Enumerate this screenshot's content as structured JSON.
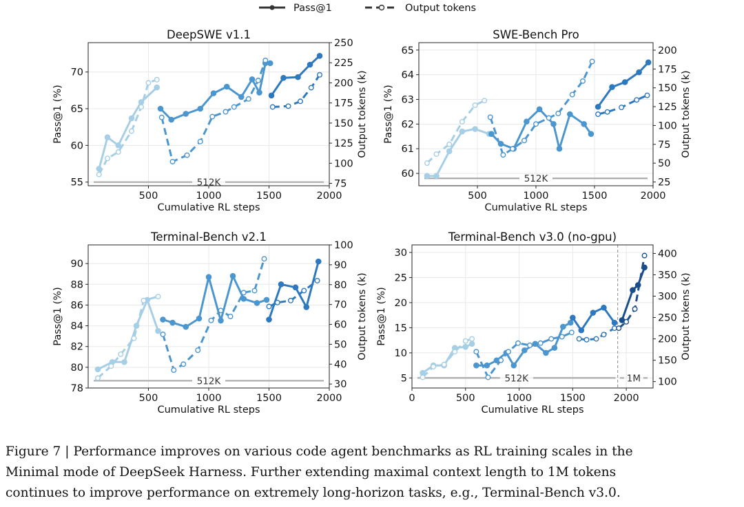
{
  "legend": {
    "pass_label": "Pass@1",
    "tokens_label": "Output tokens"
  },
  "caption": {
    "line1": "Figure 7 | Performance improves on various code agent benchmarks as RL training scales in the",
    "line2": "Minimal mode of DeepSeek Harness. Further extending maximal context length to 1M tokens",
    "line3": "continues to improve performance on extremely long-horizon tasks, e.g., Terminal-Bench v3.0."
  },
  "chart_data": [
    {
      "type": "line",
      "title": "DeepSWE v1.1",
      "xlabel": "Cumulative RL steps",
      "ylabel": "Pass@1 (%)",
      "y2label": "Output tokens (k)",
      "xlim": [
        0,
        2000
      ],
      "ylim": [
        54.5,
        74
      ],
      "y2lim": [
        72,
        250
      ],
      "xticks": [
        500,
        1000,
        1500,
        2000
      ],
      "yticks": [
        55,
        60,
        65,
        70
      ],
      "y2ticks": [
        75,
        100,
        125,
        150,
        175,
        200,
        225,
        250
      ],
      "grid": true,
      "context_bars": [
        {
          "label": "512K",
          "x": [
            0,
            2000
          ],
          "y": 55
        }
      ],
      "series": [
        {
          "name": "Pass@1",
          "stage": 1,
          "color": "#a6cfe6",
          "x": [
            90,
            160,
            250,
            360,
            440,
            570
          ],
          "values": [
            56.8,
            61.1,
            60.0,
            63.7,
            65.9,
            67.9
          ]
        },
        {
          "name": "Pass@1",
          "stage": 2,
          "color": "#4c96cf",
          "x": [
            600,
            690,
            810,
            930,
            1040,
            1150,
            1270,
            1360,
            1420,
            1470,
            1510
          ],
          "values": [
            65.0,
            63.5,
            64.3,
            65.0,
            67.1,
            68.0,
            66.6,
            69.0,
            67.2,
            71.2,
            71.2
          ]
        },
        {
          "name": "Pass@1",
          "stage": 3,
          "color": "#2e78bf",
          "x": [
            1520,
            1620,
            1740,
            1840,
            1920
          ],
          "values": [
            66.8,
            69.2,
            69.3,
            71.0,
            72.2
          ]
        },
        {
          "name": "Output tokens",
          "stage": 1,
          "color": "#a6cfe6",
          "x": [
            90,
            160,
            250,
            360,
            440,
            500,
            570
          ],
          "values": [
            86,
            106,
            114,
            140,
            170,
            200,
            204
          ]
        },
        {
          "name": "Output tokens",
          "stage": 2,
          "color": "#4c96cf",
          "x": [
            610,
            700,
            820,
            930,
            1030,
            1140,
            1210,
            1330,
            1410,
            1470
          ],
          "values": [
            157,
            102,
            110,
            127,
            158,
            164,
            170,
            180,
            203,
            228
          ]
        },
        {
          "name": "Output tokens",
          "stage": 3,
          "color": "#2e78bf",
          "x": [
            1530,
            1660,
            1760,
            1850,
            1920
          ],
          "values": [
            170,
            171,
            177,
            194,
            210
          ]
        }
      ]
    },
    {
      "type": "line",
      "title": "SWE-Bench Pro",
      "xlabel": "Cumulative RL steps",
      "ylabel": "Pass@1 (%)",
      "y2label": "Output tokens (k)",
      "xlim": [
        0,
        2000
      ],
      "ylim": [
        59.5,
        65.3
      ],
      "y2lim": [
        20,
        210
      ],
      "xticks": [
        500,
        1000,
        1500,
        2000
      ],
      "yticks": [
        60,
        61,
        62,
        63,
        64,
        65
      ],
      "y2ticks": [
        25,
        50,
        75,
        100,
        125,
        150,
        175,
        200
      ],
      "grid": true,
      "context_bars": [
        {
          "label": "512K",
          "x": [
            0,
            2000
          ],
          "y": 59.8
        }
      ],
      "series": [
        {
          "name": "Pass@1",
          "stage": 1,
          "color": "#a6cfe6",
          "x": [
            70,
            150,
            260,
            370,
            480,
            600
          ],
          "values": [
            59.9,
            59.9,
            60.9,
            61.7,
            61.8,
            61.6
          ]
        },
        {
          "name": "Pass@1",
          "stage": 2,
          "color": "#4c96cf",
          "x": [
            620,
            700,
            810,
            920,
            1030,
            1150,
            1200,
            1290,
            1410,
            1470
          ],
          "values": [
            61.6,
            61.2,
            61.0,
            62.1,
            62.6,
            62.0,
            61.0,
            62.4,
            62.0,
            61.6
          ]
        },
        {
          "name": "Pass@1",
          "stage": 3,
          "color": "#2e78bf",
          "x": [
            1530,
            1650,
            1760,
            1880,
            1960
          ],
          "values": [
            62.7,
            63.5,
            63.7,
            64.1,
            64.5
          ]
        },
        {
          "name": "Output tokens",
          "stage": 1,
          "color": "#a6cfe6",
          "x": [
            70,
            150,
            260,
            370,
            480,
            560
          ],
          "values": [
            50,
            62,
            75,
            105,
            127,
            133
          ]
        },
        {
          "name": "Output tokens",
          "stage": 2,
          "color": "#4c96cf",
          "x": [
            610,
            720,
            800,
            900,
            1000,
            1110,
            1190,
            1310,
            1400,
            1480
          ],
          "values": [
            111,
            61,
            69,
            80,
            102,
            110,
            116,
            141,
            159,
            185
          ]
        },
        {
          "name": "Output tokens",
          "stage": 3,
          "color": "#2e78bf",
          "x": [
            1530,
            1610,
            1730,
            1860,
            1950
          ],
          "values": [
            115,
            118,
            124,
            134,
            140
          ]
        }
      ]
    },
    {
      "type": "line",
      "title": "Terminal-Bench v2.1",
      "xlabel": "Cumulative RL steps",
      "ylabel": "Pass@1 (%)",
      "y2label": "Output tokens (k)",
      "xlim": [
        0,
        2000
      ],
      "ylim": [
        78,
        91.8
      ],
      "y2lim": [
        28,
        100
      ],
      "xticks": [
        500,
        1000,
        1500,
        2000
      ],
      "yticks": [
        78,
        80,
        82,
        84,
        86,
        88,
        90
      ],
      "y2ticks": [
        30,
        40,
        50,
        60,
        70,
        80,
        90,
        100
      ],
      "grid": true,
      "context_bars": [
        {
          "label": "512K",
          "x": [
            0,
            2000
          ],
          "y": 78.7
        }
      ],
      "series": [
        {
          "name": "Pass@1",
          "stage": 1,
          "color": "#a6cfe6",
          "x": [
            80,
            200,
            300,
            400,
            490,
            580
          ],
          "values": [
            79.8,
            80.5,
            80.5,
            84.0,
            86.5,
            83.5
          ]
        },
        {
          "name": "Pass@1",
          "stage": 2,
          "color": "#4c96cf",
          "x": [
            620,
            700,
            810,
            920,
            1000,
            1100,
            1200,
            1290,
            1400,
            1480
          ],
          "values": [
            84.6,
            84.3,
            83.9,
            84.7,
            88.7,
            84.5,
            88.8,
            86.6,
            86.2,
            86.5
          ]
        },
        {
          "name": "Pass@1",
          "stage": 3,
          "color": "#2e78bf",
          "x": [
            1500,
            1600,
            1720,
            1810,
            1910
          ],
          "values": [
            84.6,
            88.0,
            87.7,
            85.8,
            90.2
          ]
        },
        {
          "name": "Output tokens",
          "stage": 1,
          "color": "#a6cfe6",
          "x": [
            80,
            190,
            270,
            380,
            460,
            580
          ],
          "values": [
            33,
            39,
            45,
            53,
            72,
            74
          ]
        },
        {
          "name": "Output tokens",
          "stage": 2,
          "color": "#4c96cf",
          "x": [
            620,
            710,
            790,
            910,
            1020,
            1100,
            1180,
            1290,
            1380,
            1460
          ],
          "values": [
            55,
            37,
            40,
            47,
            62,
            67,
            64,
            76,
            77,
            93
          ]
        },
        {
          "name": "Output tokens",
          "stage": 3,
          "color": "#2e78bf",
          "x": [
            1500,
            1570,
            1680,
            1790,
            1900
          ],
          "values": [
            69,
            71,
            72,
            77,
            82
          ]
        }
      ]
    },
    {
      "type": "line",
      "title": "Terminal-Bench v3.0 (no-gpu)",
      "xlabel": "Cumulative RL steps",
      "ylabel": "Pass@1 (%)",
      "y2label": "Output tokens (k)",
      "xlim": [
        0,
        2250
      ],
      "ylim": [
        3,
        31.5
      ],
      "y2lim": [
        85,
        420
      ],
      "xticks": [
        0,
        500,
        1000,
        1500,
        2000
      ],
      "yticks": [
        5,
        10,
        15,
        20,
        25,
        30
      ],
      "y2ticks": [
        100,
        150,
        200,
        250,
        300,
        350,
        400
      ],
      "grid": true,
      "divider_x": 1920,
      "context_bars": [
        {
          "label": "512K",
          "x": [
            0,
            1900
          ],
          "y": 5.0
        },
        {
          "label": "1M",
          "x": [
            1940,
            2250
          ],
          "y": 5.0
        }
      ],
      "series": [
        {
          "name": "Pass@1",
          "stage": 1,
          "color": "#a6cfe6",
          "x": [
            100,
            200,
            300,
            400,
            500,
            560
          ],
          "values": [
            6.0,
            7.5,
            7.5,
            11.0,
            11.2,
            11.8
          ]
        },
        {
          "name": "Pass@1",
          "stage": 2,
          "color": "#4c96cf",
          "x": [
            600,
            700,
            790,
            880,
            950,
            1050,
            1150,
            1250,
            1330,
            1410,
            1480
          ],
          "values": [
            7.5,
            7.5,
            8.5,
            10.0,
            7.5,
            10.5,
            11.8,
            10.0,
            11.0,
            15.2,
            16.0
          ]
        },
        {
          "name": "Pass@1",
          "stage": 3,
          "color": "#2e78bf",
          "x": [
            1500,
            1580,
            1690,
            1790,
            1890
          ],
          "values": [
            17.0,
            14.5,
            18.0,
            19.0,
            16.0
          ]
        },
        {
          "name": "Pass@1",
          "stage": 4,
          "color": "#1a4e8a",
          "x": [
            1960,
            2060,
            2110,
            2170
          ],
          "values": [
            16.5,
            22.5,
            23.5,
            27.0
          ]
        },
        {
          "name": "Output tokens",
          "stage": 1,
          "color": "#a6cfe6",
          "x": [
            100,
            200,
            300,
            400,
            500,
            560
          ],
          "values": [
            110,
            135,
            140,
            170,
            195,
            200
          ]
        },
        {
          "name": "Output tokens",
          "stage": 2,
          "color": "#4c96cf",
          "x": [
            600,
            710,
            830,
            900,
            990,
            1100,
            1200,
            1300,
            1400,
            1490
          ],
          "values": [
            170,
            110,
            150,
            170,
            190,
            185,
            190,
            200,
            205,
            215
          ]
        },
        {
          "name": "Output tokens",
          "stage": 3,
          "color": "#2e78bf",
          "x": [
            1560,
            1630,
            1720,
            1790,
            1890
          ],
          "values": [
            200,
            198,
            200,
            210,
            225
          ]
        },
        {
          "name": "Output tokens",
          "stage": 4,
          "color": "#1a4e8a",
          "x": [
            1930,
            2000,
            2080,
            2170
          ],
          "values": [
            225,
            240,
            270,
            395
          ]
        }
      ]
    }
  ]
}
